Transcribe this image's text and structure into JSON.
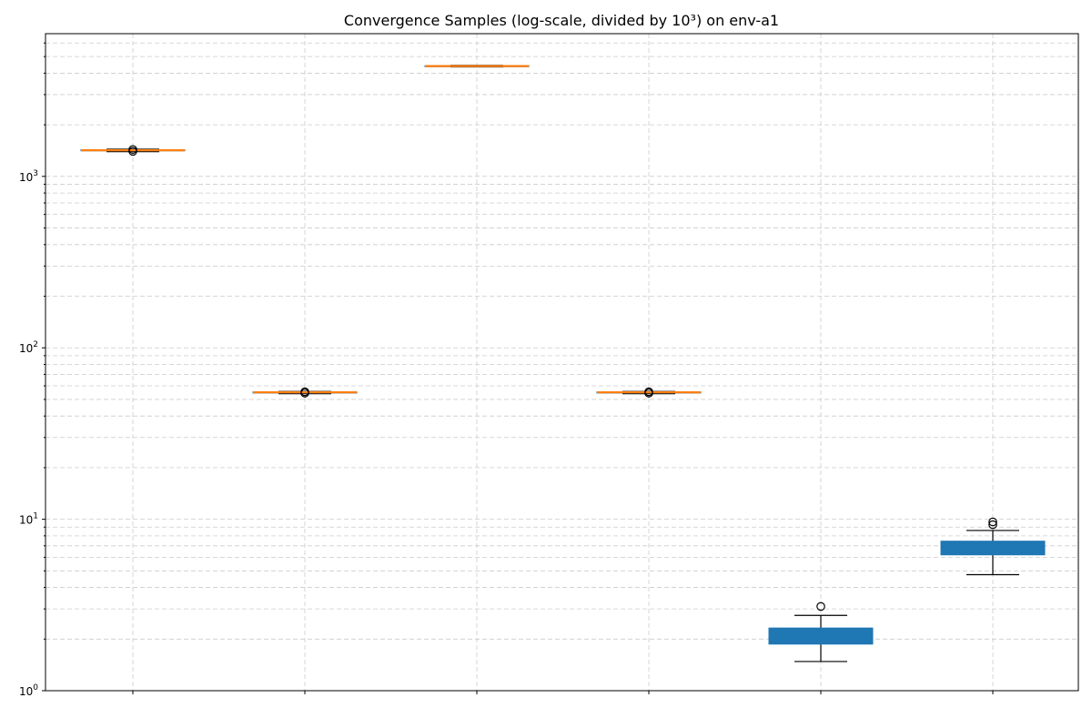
{
  "chart_data": {
    "type": "boxplot",
    "title": "Convergence Samples (log-scale, divided by 10³) on env-a1",
    "xlabel": "",
    "ylabel": "",
    "yscale": "log",
    "ylim": [
      1,
      6800
    ],
    "grid": true,
    "y_ticks": [
      {
        "value": 1,
        "base": "10",
        "exp": "0"
      },
      {
        "value": 10,
        "base": "10",
        "exp": "1"
      },
      {
        "value": 100,
        "base": "10",
        "exp": "2"
      },
      {
        "value": 1000,
        "base": "10",
        "exp": "3"
      }
    ],
    "categories": [
      "",
      "",
      "",
      "",
      "",
      ""
    ],
    "boxes": [
      {
        "whisker_low": 1395,
        "q1": 1410,
        "median": 1420,
        "q3": 1430,
        "whisker_high": 1440,
        "outliers": [
          1400,
          1435
        ],
        "color": "#ff7f0e"
      },
      {
        "whisker_low": 54,
        "q1": 54.5,
        "median": 55,
        "q3": 55.3,
        "whisker_high": 55.6,
        "outliers": [
          54.4,
          55.4
        ],
        "color": "#ff7f0e"
      },
      {
        "whisker_low": 4350,
        "q1": 4370,
        "median": 4400,
        "q3": 4420,
        "whisker_high": 4440,
        "outliers": [],
        "color": "#ff7f0e"
      },
      {
        "whisker_low": 54,
        "q1": 54.5,
        "median": 55,
        "q3": 55.3,
        "whisker_high": 55.6,
        "outliers": [
          54.4,
          55.4
        ],
        "color": "#ff7f0e"
      },
      {
        "whisker_low": 1.48,
        "q1": 1.87,
        "median": 1.9,
        "q3": 2.32,
        "whisker_high": 2.75,
        "outliers": [
          3.1
        ],
        "color": "#1f77b4"
      },
      {
        "whisker_low": 4.75,
        "q1": 6.2,
        "median": 6.9,
        "q3": 7.45,
        "whisker_high": 8.6,
        "outliers": [
          9.3,
          9.65
        ],
        "color": "#1f77b4"
      }
    ]
  }
}
